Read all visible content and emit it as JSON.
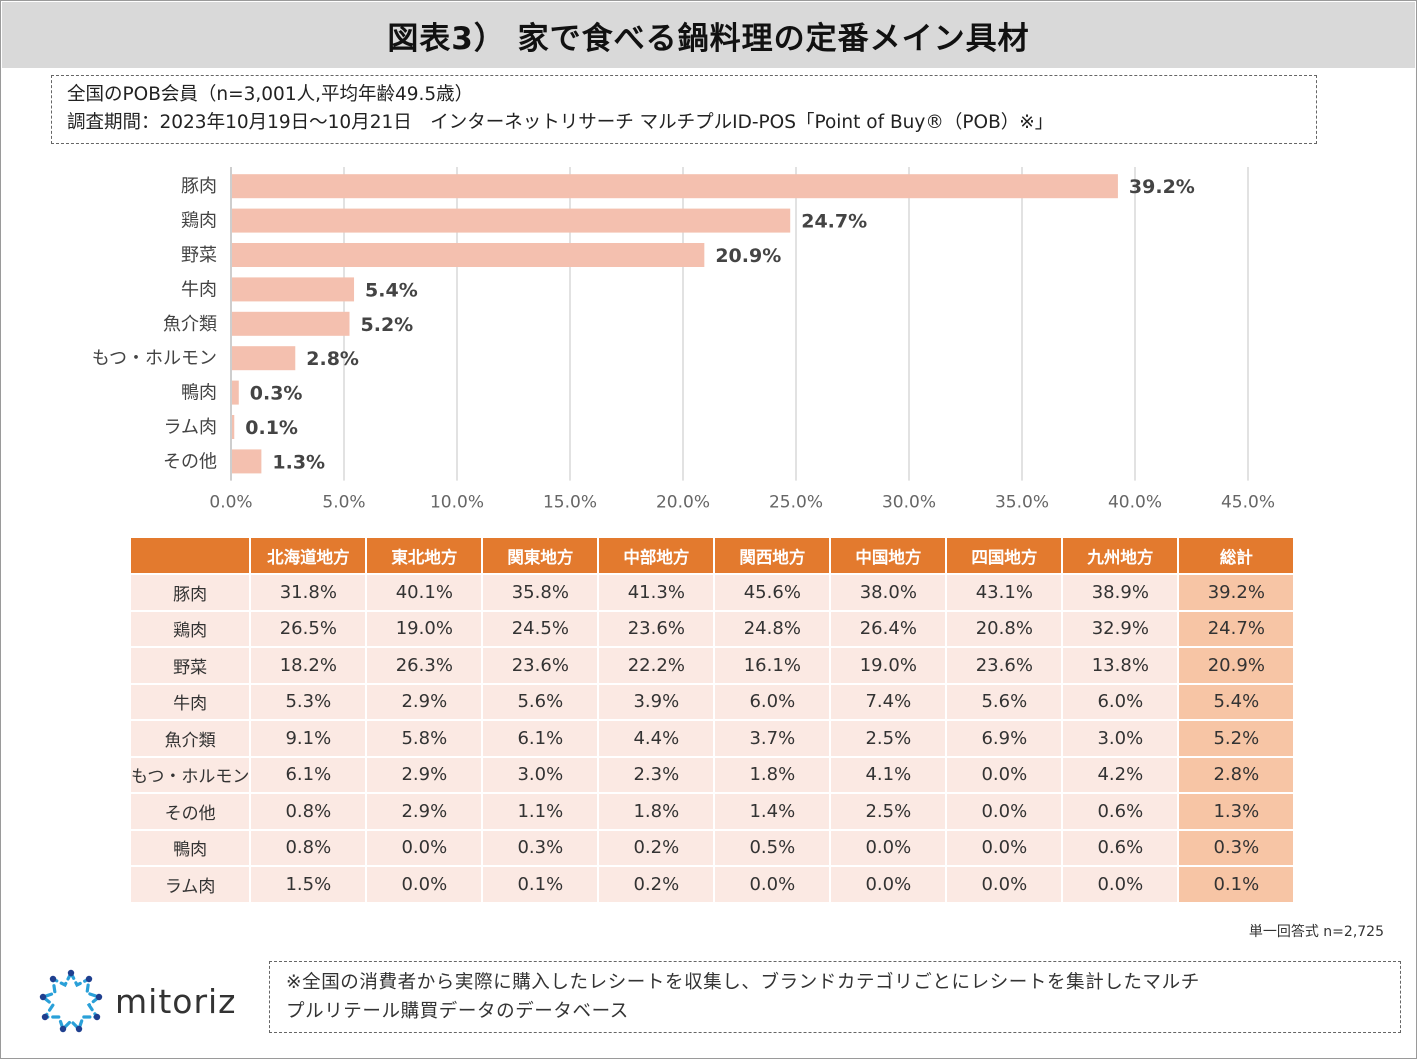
{
  "title": "図表3） 家で食べる鍋料理の定番メイン具材",
  "info": {
    "line1": "全国のPOB会員（n=3,001人,平均年齢49.5歳）",
    "line2": "調査期間：2023年10月19日～10月21日　インターネットリサーチ マルチプルID-POS「Point of Buy®（POB）※」"
  },
  "chart_data": {
    "type": "bar",
    "orientation": "horizontal",
    "categories": [
      "豚肉",
      "鶏肉",
      "野菜",
      "牛肉",
      "魚介類",
      "もつ・ホルモン",
      "鴨肉",
      "ラム肉",
      "その他"
    ],
    "values": [
      39.2,
      24.7,
      20.9,
      5.4,
      5.2,
      2.8,
      0.3,
      0.1,
      1.3
    ],
    "value_labels": [
      "39.2%",
      "24.7%",
      "20.9%",
      "5.4%",
      "5.2%",
      "2.8%",
      "0.3%",
      "0.1%",
      "1.3%"
    ],
    "ticks": [
      "0.0%",
      "5.0%",
      "10.0%",
      "15.0%",
      "20.0%",
      "25.0%",
      "30.0%",
      "35.0%",
      "40.0%",
      "45.0%"
    ],
    "xlim": [
      0,
      45
    ],
    "grid": true,
    "bar_color": "#f4c0af"
  },
  "table": {
    "corner": "",
    "columns": [
      "北海道地方",
      "東北地方",
      "関東地方",
      "中部地方",
      "関西地方",
      "中国地方",
      "四国地方",
      "九州地方",
      "総計"
    ],
    "rows": [
      {
        "label": "豚肉",
        "values": [
          "31.8%",
          "40.1%",
          "35.8%",
          "41.3%",
          "45.6%",
          "38.0%",
          "43.1%",
          "38.9%",
          "39.2%"
        ]
      },
      {
        "label": "鶏肉",
        "values": [
          "26.5%",
          "19.0%",
          "24.5%",
          "23.6%",
          "24.8%",
          "26.4%",
          "20.8%",
          "32.9%",
          "24.7%"
        ]
      },
      {
        "label": "野菜",
        "values": [
          "18.2%",
          "26.3%",
          "23.6%",
          "22.2%",
          "16.1%",
          "19.0%",
          "23.6%",
          "13.8%",
          "20.9%"
        ]
      },
      {
        "label": "牛肉",
        "values": [
          "5.3%",
          "2.9%",
          "5.6%",
          "3.9%",
          "6.0%",
          "7.4%",
          "5.6%",
          "6.0%",
          "5.4%"
        ]
      },
      {
        "label": "魚介類",
        "values": [
          "9.1%",
          "5.8%",
          "6.1%",
          "4.4%",
          "3.7%",
          "2.5%",
          "6.9%",
          "3.0%",
          "5.2%"
        ]
      },
      {
        "label": "もつ・ホルモン",
        "values": [
          "6.1%",
          "2.9%",
          "3.0%",
          "2.3%",
          "1.8%",
          "4.1%",
          "0.0%",
          "4.2%",
          "2.8%"
        ]
      },
      {
        "label": "その他",
        "values": [
          "0.8%",
          "2.9%",
          "1.1%",
          "1.8%",
          "1.4%",
          "2.5%",
          "0.0%",
          "0.6%",
          "1.3%"
        ]
      },
      {
        "label": "鴨肉",
        "values": [
          "0.8%",
          "0.0%",
          "0.3%",
          "0.2%",
          "0.5%",
          "0.0%",
          "0.0%",
          "0.6%",
          "0.3%"
        ]
      },
      {
        "label": "ラム肉",
        "values": [
          "1.5%",
          "0.0%",
          "0.1%",
          "0.2%",
          "0.0%",
          "0.0%",
          "0.0%",
          "0.0%",
          "0.1%"
        ]
      }
    ],
    "header_color": "#e37a2e",
    "cell_color": "#fbe9e3",
    "total_color": "#f7c5a5"
  },
  "sample_note": "単一回答式 n=2,725",
  "logo": {
    "text": "mitoriz",
    "icon": "mitoriz-logo-icon"
  },
  "footnote": {
    "line1": "※全国の消費者から実際に購入したレシートを収集し、ブランドカテゴリごとにレシートを集計したマルチ",
    "line2": "プルリテール購買データのデータベース"
  }
}
